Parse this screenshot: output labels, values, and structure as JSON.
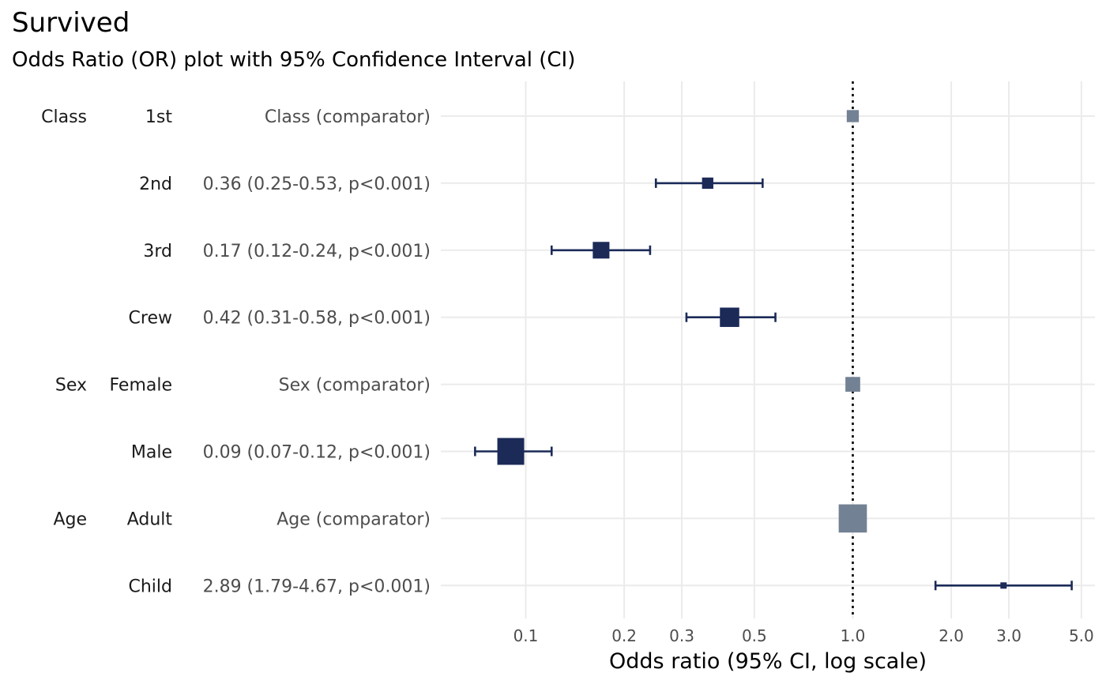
{
  "chart_data": {
    "type": "forest",
    "title": "Survived",
    "subtitle": "Odds Ratio (OR) plot with 95% Confidence Interval (CI)",
    "xlabel": "Odds ratio (95% CI, log scale)",
    "x_scale": "log",
    "xlim": [
      0.055,
      5.5
    ],
    "x_ticks": [
      {
        "value": 0.1,
        "label": "0.1"
      },
      {
        "value": 0.2,
        "label": "0.2"
      },
      {
        "value": 0.3,
        "label": "0.3"
      },
      {
        "value": 0.5,
        "label": "0.5"
      },
      {
        "value": 1.0,
        "label": "1.0"
      },
      {
        "value": 2.0,
        "label": "2.0"
      },
      {
        "value": 3.0,
        "label": "3.0"
      },
      {
        "value": 5.0,
        "label": "5.0"
      }
    ],
    "reference_line": 1.0,
    "grid": true,
    "rows": [
      {
        "group": "Class",
        "level": "1st",
        "text": "Class (comparator)",
        "or": 1.0,
        "lower": null,
        "upper": null,
        "comparator": true,
        "weight": 0.45
      },
      {
        "group": "",
        "level": "2nd",
        "text": "0.36 (0.25-0.53, p<0.001)",
        "or": 0.36,
        "lower": 0.25,
        "upper": 0.53,
        "comparator": false,
        "weight": 0.42
      },
      {
        "group": "",
        "level": "3rd",
        "text": "0.17 (0.12-0.24, p<0.001)",
        "or": 0.17,
        "lower": 0.12,
        "upper": 0.24,
        "comparator": false,
        "weight": 0.62
      },
      {
        "group": "",
        "level": "Crew",
        "text": "0.42 (0.31-0.58, p<0.001)",
        "or": 0.42,
        "lower": 0.31,
        "upper": 0.58,
        "comparator": false,
        "weight": 0.72
      },
      {
        "group": "Sex",
        "level": "Female",
        "text": "Sex (comparator)",
        "or": 1.0,
        "lower": null,
        "upper": null,
        "comparator": true,
        "weight": 0.55
      },
      {
        "group": "",
        "level": "Male",
        "text": "0.09 (0.07-0.12, p<0.001)",
        "or": 0.09,
        "lower": 0.07,
        "upper": 0.12,
        "comparator": false,
        "weight": 1.0
      },
      {
        "group": "Age",
        "level": "Adult",
        "text": "Age (comparator)",
        "or": 1.0,
        "lower": null,
        "upper": null,
        "comparator": true,
        "weight": 1.05
      },
      {
        "group": "",
        "level": "Child",
        "text": "2.89 (1.79-4.67, p<0.001)",
        "or": 2.89,
        "lower": 1.79,
        "upper": 4.67,
        "comparator": false,
        "weight": 0.2
      }
    ],
    "colors": {
      "point": "#1b2a57",
      "comparator": "#738194",
      "grid": "#ebebeb",
      "reference": "#000000",
      "group_text": "#1a1a1a",
      "level_text": "#1a1a1a",
      "or_text": "#4d4d4d"
    }
  }
}
